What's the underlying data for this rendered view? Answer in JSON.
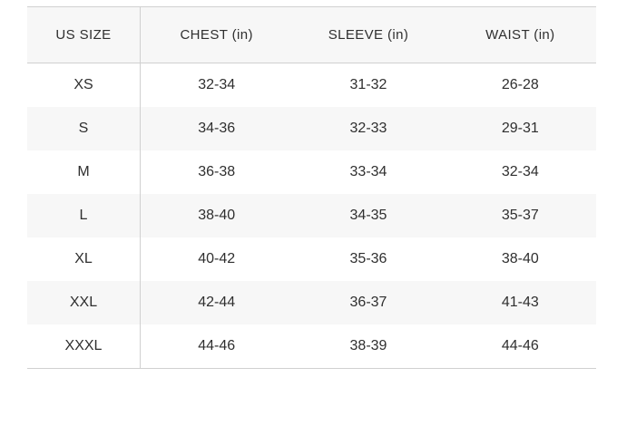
{
  "size_chart": {
    "columns": {
      "size": "US SIZE",
      "chest": "CHEST (in)",
      "sleeve": "SLEEVE (in)",
      "waist": "WAIST (in)"
    },
    "rows": [
      {
        "size": "XS",
        "chest": "32-34",
        "sleeve": "31-32",
        "waist": "26-28"
      },
      {
        "size": "S",
        "chest": "34-36",
        "sleeve": "32-33",
        "waist": "29-31"
      },
      {
        "size": "M",
        "chest": "36-38",
        "sleeve": "33-34",
        "waist": "32-34"
      },
      {
        "size": "L",
        "chest": "38-40",
        "sleeve": "34-35",
        "waist": "35-37"
      },
      {
        "size": "XL",
        "chest": "40-42",
        "sleeve": "35-36",
        "waist": "38-40"
      },
      {
        "size": "XXL",
        "chest": "42-44",
        "sleeve": "36-37",
        "waist": "41-43"
      },
      {
        "size": "XXXL",
        "chest": "44-46",
        "sleeve": "38-39",
        "waist": "44-46"
      }
    ],
    "colors": {
      "stripe_background": "#f7f7f7",
      "border": "#d0d0d0",
      "text": "#2f2f2f",
      "page_background": "#ffffff"
    }
  }
}
